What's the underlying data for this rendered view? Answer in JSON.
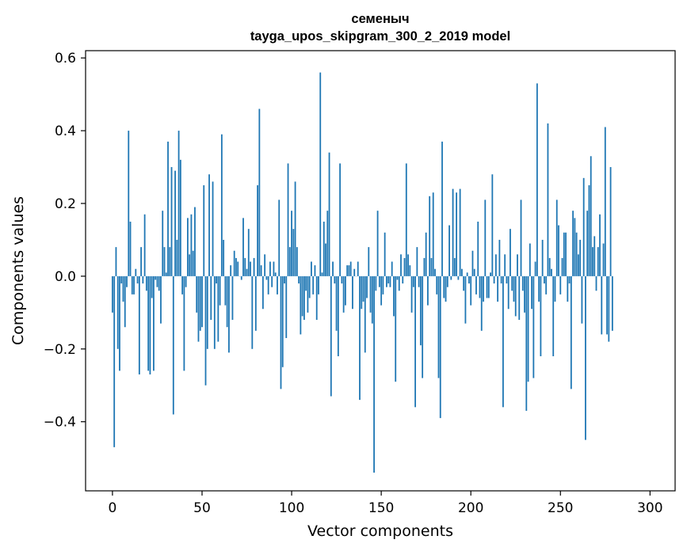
{
  "chart_data": {
    "type": "bar",
    "title_lines": [
      "семеныч",
      "tayga_upos_skipgram_300_2_2019 model"
    ],
    "xlabel": "Vector components",
    "ylabel": "Components values",
    "xlim": [
      -15,
      314
    ],
    "ylim": [
      -0.59,
      0.62
    ],
    "xticks": [
      0,
      50,
      100,
      150,
      200,
      250,
      300
    ],
    "xtick_labels": [
      "0",
      "50",
      "100",
      "150",
      "200",
      "250",
      "300"
    ],
    "yticks": [
      -0.4,
      -0.2,
      0.0,
      0.2,
      0.4,
      0.6
    ],
    "ytick_labels": [
      "−0.4",
      "−0.2",
      "0.0",
      "0.2",
      "0.4",
      "0.6"
    ],
    "grid": false,
    "bar_color": "#1f77b4",
    "values": [
      -0.1,
      -0.47,
      0.08,
      -0.2,
      -0.26,
      -0.02,
      -0.07,
      -0.14,
      -0.03,
      0.4,
      0.15,
      -0.05,
      -0.05,
      0.02,
      -0.02,
      -0.27,
      0.08,
      -0.02,
      0.17,
      -0.04,
      -0.26,
      -0.27,
      -0.06,
      -0.26,
      -0.01,
      -0.03,
      -0.04,
      -0.13,
      0.18,
      0.08,
      0.01,
      0.37,
      0.08,
      0.3,
      -0.38,
      0.29,
      0.1,
      0.4,
      0.32,
      -0.05,
      -0.26,
      -0.03,
      0.16,
      0.06,
      0.17,
      0.07,
      0.19,
      -0.1,
      -0.18,
      -0.15,
      -0.14,
      0.25,
      -0.3,
      -0.2,
      0.28,
      -0.12,
      0.26,
      -0.2,
      -0.02,
      -0.18,
      -0.08,
      0.39,
      0.1,
      -0.08,
      -0.14,
      -0.21,
      0.03,
      -0.12,
      0.07,
      0.05,
      0.04,
      0.0,
      -0.01,
      0.16,
      0.05,
      0.02,
      0.13,
      0.04,
      -0.2,
      0.05,
      -0.15,
      0.25,
      0.46,
      0.03,
      -0.09,
      0.06,
      -0.01,
      -0.05,
      0.04,
      -0.03,
      0.04,
      0.01,
      -0.05,
      0.21,
      -0.31,
      -0.25,
      -0.02,
      -0.17,
      0.31,
      0.08,
      0.18,
      0.13,
      0.26,
      0.08,
      -0.02,
      -0.16,
      -0.11,
      -0.12,
      -0.04,
      -0.1,
      -0.06,
      0.04,
      -0.05,
      0.03,
      -0.12,
      -0.05,
      0.56,
      0.01,
      0.15,
      0.09,
      0.18,
      0.34,
      -0.33,
      0.04,
      -0.02,
      -0.15,
      -0.22,
      0.31,
      -0.02,
      -0.1,
      -0.08,
      0.03,
      0.03,
      0.04,
      -0.09,
      0.02,
      0.0,
      0.04,
      -0.34,
      -0.09,
      -0.07,
      -0.21,
      -0.06,
      0.08,
      -0.1,
      -0.13,
      -0.54,
      -0.04,
      0.18,
      -0.03,
      -0.08,
      -0.05,
      0.12,
      -0.03,
      -0.02,
      -0.03,
      0.04,
      -0.11,
      -0.29,
      -0.01,
      -0.04,
      0.06,
      -0.02,
      0.05,
      0.31,
      0.06,
      0.03,
      -0.1,
      -0.03,
      -0.36,
      0.08,
      -0.03,
      -0.19,
      -0.28,
      0.05,
      0.12,
      -0.08,
      0.22,
      0.05,
      0.23,
      0.02,
      -0.05,
      -0.28,
      -0.39,
      0.37,
      -0.06,
      -0.07,
      -0.03,
      0.14,
      -0.01,
      0.24,
      0.05,
      0.23,
      -0.01,
      0.24,
      0.02,
      -0.04,
      -0.13,
      0.01,
      -0.02,
      -0.08,
      0.07,
      0.02,
      -0.05,
      0.15,
      -0.06,
      -0.15,
      -0.07,
      0.21,
      -0.06,
      -0.06,
      0.01,
      0.28,
      -0.02,
      0.06,
      -0.07,
      0.1,
      -0.02,
      -0.36,
      0.06,
      -0.02,
      -0.09,
      0.13,
      -0.04,
      -0.07,
      -0.11,
      0.06,
      -0.12,
      0.21,
      -0.04,
      -0.1,
      -0.37,
      -0.29,
      0.09,
      -0.09,
      -0.28,
      0.04,
      0.53,
      -0.07,
      -0.22,
      0.1,
      -0.02,
      -0.05,
      0.42,
      0.05,
      0.02,
      -0.22,
      -0.07,
      0.21,
      0.14,
      -0.05,
      0.05,
      0.12,
      0.12,
      -0.07,
      -0.02,
      -0.31,
      0.18,
      0.16,
      0.12,
      0.06,
      0.1,
      -0.13,
      0.27,
      -0.45,
      0.18,
      0.25,
      0.33,
      0.08,
      0.11,
      -0.04,
      0.08,
      0.17,
      -0.16,
      0.09,
      0.41,
      -0.16,
      -0.18,
      0.3,
      -0.15
    ]
  }
}
